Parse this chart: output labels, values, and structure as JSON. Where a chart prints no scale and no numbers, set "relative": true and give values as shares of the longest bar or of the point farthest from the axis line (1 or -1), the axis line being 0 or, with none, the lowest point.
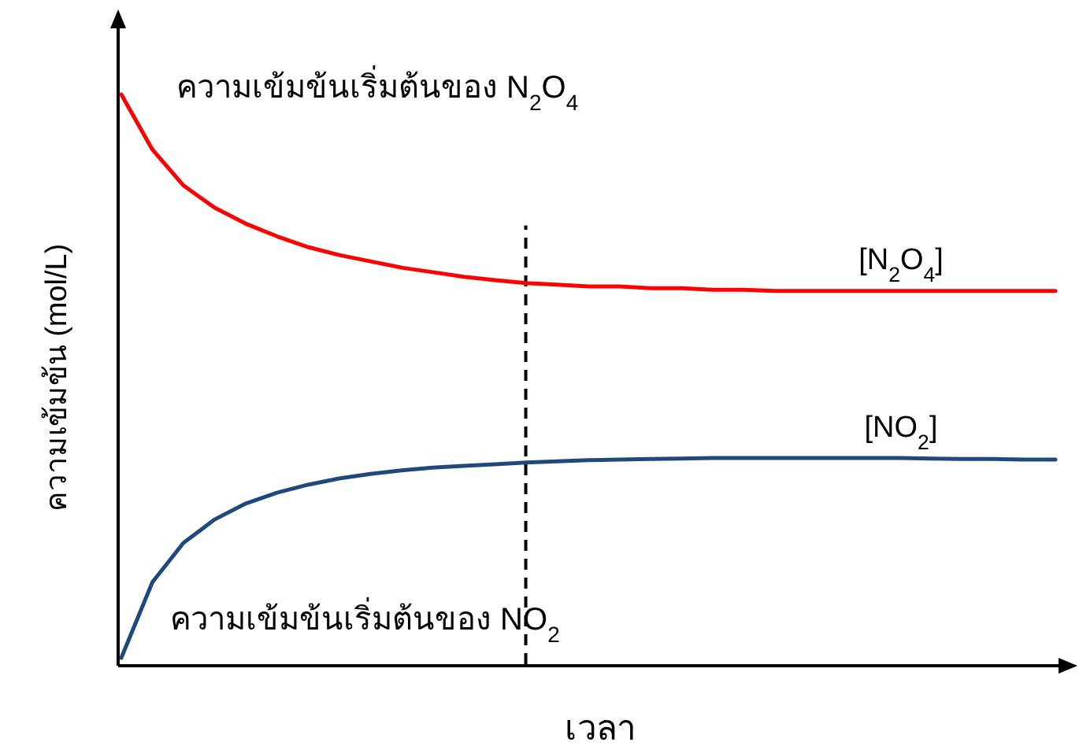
{
  "chart_data": {
    "type": "line",
    "relative": true,
    "xlabel": "เวลา",
    "ylabel": "ความเข้มข้น (mol/L)",
    "categories": [
      null,
      null,
      null,
      null,
      null,
      null,
      null,
      null,
      null,
      null,
      null,
      null,
      null,
      null,
      null,
      null,
      null,
      null,
      null,
      null,
      null,
      null,
      null,
      null,
      null,
      null,
      null,
      null,
      null,
      null,
      null
    ],
    "series": [
      {
        "name": "[N$_{2}$O$_{4}$]",
        "color": "#ff0000",
        "values": [
          1.0,
          0.903,
          0.84,
          0.801,
          0.773,
          0.751,
          0.732,
          0.718,
          0.707,
          0.696,
          0.688,
          0.68,
          0.674,
          0.669,
          0.666,
          0.663,
          0.663,
          0.66,
          0.66,
          0.657,
          0.657,
          0.655,
          0.655,
          0.655,
          0.655,
          0.655,
          0.655,
          0.655,
          0.655,
          0.655,
          0.655
        ]
      },
      {
        "name": "[NO$_{2}$]",
        "color": "#1f497d",
        "values": [
          0.011,
          0.144,
          0.213,
          0.254,
          0.282,
          0.301,
          0.315,
          0.326,
          0.334,
          0.34,
          0.345,
          0.348,
          0.351,
          0.354,
          0.356,
          0.358,
          0.359,
          0.36,
          0.361,
          0.362,
          0.362,
          0.362,
          0.362,
          0.362,
          0.362,
          0.362,
          0.361,
          0.36,
          0.36,
          0.359,
          0.359
        ]
      }
    ],
    "annotations": [
      "ความเข้มข้นเริ่มต้นของ N$_{2}$O$_{4}$",
      "ความเข้มข้นเริ่มต้นของ NO$_{2}$"
    ]
  }
}
